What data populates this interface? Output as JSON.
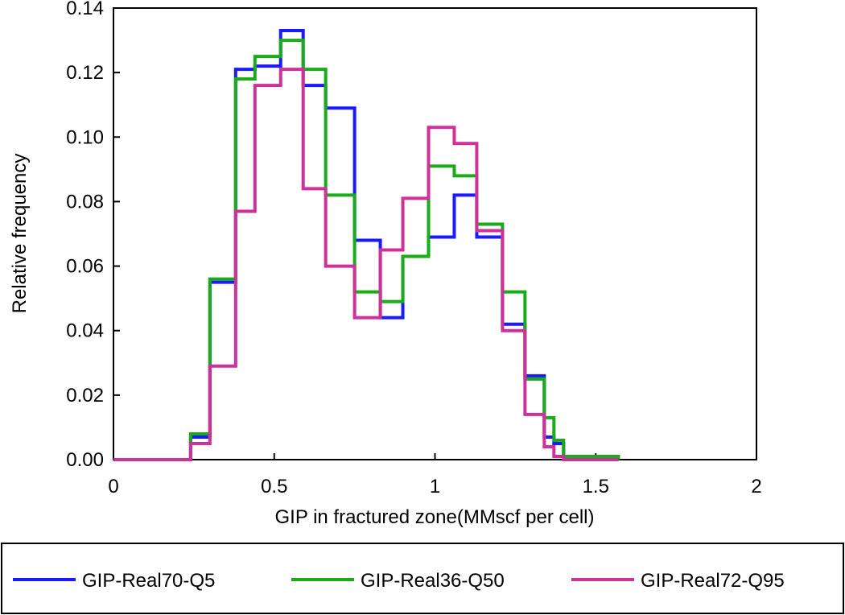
{
  "chart_data": {
    "type": "line",
    "step": true,
    "xlabel": "GIP in fractured zone(MMscf per cell)",
    "ylabel": "Relative frequency",
    "xlim": [
      0,
      2
    ],
    "ylim": [
      0,
      0.14
    ],
    "xticks": [
      0,
      0.5,
      1,
      1.5,
      2
    ],
    "xtick_labels": [
      "0",
      "0.5",
      "1",
      "1.5",
      "2"
    ],
    "yticks": [
      0,
      0.02,
      0.04,
      0.06,
      0.08,
      0.1,
      0.12,
      0.14
    ],
    "ytick_labels": [
      "0.00",
      "0.02",
      "0.04",
      "0.06",
      "0.08",
      "0.10",
      "0.12",
      "0.14"
    ],
    "grid": false,
    "legend_position": "bottom",
    "series": [
      {
        "name": "GIP-Real70-Q5",
        "color": "#1a1aff",
        "x": [
          0,
          0.22,
          0.24,
          0.3,
          0.38,
          0.44,
          0.52,
          0.59,
          0.66,
          0.75,
          0.83,
          0.9,
          0.98,
          1.06,
          1.13,
          1.21,
          1.28,
          1.34,
          1.37,
          1.4,
          1.57
        ],
        "y": [
          0,
          0,
          0.007,
          0.055,
          0.121,
          0.122,
          0.133,
          0.116,
          0.109,
          0.068,
          0.044,
          0.063,
          0.069,
          0.082,
          0.069,
          0.042,
          0.026,
          0.007,
          0.005,
          0.001,
          0
        ]
      },
      {
        "name": "GIP-Real36-Q50",
        "color": "#1aaa1a",
        "x": [
          0,
          0.22,
          0.24,
          0.3,
          0.38,
          0.44,
          0.52,
          0.59,
          0.66,
          0.75,
          0.83,
          0.9,
          0.98,
          1.06,
          1.13,
          1.21,
          1.28,
          1.34,
          1.37,
          1.4,
          1.57
        ],
        "y": [
          0,
          0,
          0.008,
          0.056,
          0.118,
          0.125,
          0.13,
          0.121,
          0.082,
          0.052,
          0.049,
          0.063,
          0.091,
          0.088,
          0.073,
          0.052,
          0.025,
          0.013,
          0.006,
          0.001,
          0
        ]
      },
      {
        "name": "GIP-Real72-Q95",
        "color": "#cc3399",
        "x": [
          0,
          0.22,
          0.24,
          0.3,
          0.38,
          0.44,
          0.52,
          0.59,
          0.66,
          0.75,
          0.83,
          0.9,
          0.98,
          1.06,
          1.13,
          1.21,
          1.28,
          1.34,
          1.37,
          1.4,
          1.57
        ],
        "y": [
          0,
          0,
          0.005,
          0.029,
          0.077,
          0.116,
          0.121,
          0.084,
          0.06,
          0.044,
          0.065,
          0.081,
          0.103,
          0.098,
          0.071,
          0.04,
          0.014,
          0.004,
          0.001,
          0,
          0
        ]
      }
    ]
  }
}
